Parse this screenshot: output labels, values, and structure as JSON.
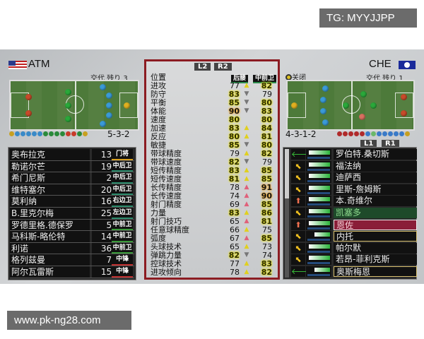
{
  "watermarks": {
    "top": "TG: MYYJJPP",
    "bottom": "www.pk-ng28.com"
  },
  "home": {
    "team": "ATM",
    "subs": "交代 残り 3",
    "formation": "5-3-2",
    "players": [
      {
        "name": "奥布拉克",
        "num": "13",
        "pos": "门将",
        "color": "#d9a020"
      },
      {
        "name": "勒诺尔芒",
        "num": "19",
        "pos": "中后卫",
        "color": "#2a8a6a"
      },
      {
        "name": "希门尼斯",
        "num": "2",
        "pos": "中后卫",
        "color": "#2a8a6a"
      },
      {
        "name": "维特塞尔",
        "num": "20",
        "pos": "中后卫",
        "color": "#2a8a6a"
      },
      {
        "name": "莫利纳",
        "num": "16",
        "pos": "右边卫",
        "color": "#2a8a6a"
      },
      {
        "name": "B.里克尔梅",
        "num": "25",
        "pos": "左边卫",
        "color": "#2a8a6a"
      },
      {
        "name": "罗德里格.德保罗",
        "num": "5",
        "pos": "中前卫",
        "color": "#3a9a3a"
      },
      {
        "name": "马科斯-略伦特",
        "num": "14",
        "pos": "中前卫",
        "color": "#3a9a3a"
      },
      {
        "name": "利诺",
        "num": "36",
        "pos": "中前卫",
        "color": "#3a9a3a"
      },
      {
        "name": "格列兹曼",
        "num": "7",
        "pos": "中锋",
        "color": "#c03030"
      },
      {
        "name": "阿尔瓦雷斯",
        "num": "15",
        "pos": "中锋",
        "color": "#c03030"
      }
    ]
  },
  "compare": {
    "l_button": "L2",
    "r_button": "R2",
    "position_label": "位置",
    "pos_left": "后腰",
    "pos_right": "中前卫",
    "stats": [
      [
        "进攻",
        77,
        "up",
        82
      ],
      [
        "防守",
        83,
        "down",
        79
      ],
      [
        "平衡",
        85,
        "down",
        80
      ],
      [
        "体能",
        90,
        "down",
        83
      ],
      [
        "速度",
        80,
        "none",
        80
      ],
      [
        "加速",
        83,
        "up",
        84
      ],
      [
        "反应",
        80,
        "up",
        81
      ],
      [
        "敏捷",
        85,
        "down",
        80
      ],
      [
        "带球精度",
        79,
        "up",
        82
      ],
      [
        "带球速度",
        82,
        "down",
        79
      ],
      [
        "短传精度",
        83,
        "up",
        85
      ],
      [
        "短传速度",
        81,
        "up",
        85
      ],
      [
        "长传精度",
        78,
        "up-big",
        91
      ],
      [
        "长传速度",
        74,
        "up-big",
        90
      ],
      [
        "射门精度",
        69,
        "up-big",
        85
      ],
      [
        "力量",
        83,
        "up",
        86
      ],
      [
        "射门技巧",
        65,
        "up-big",
        81
      ],
      [
        "任意球精度",
        66,
        "up",
        75
      ],
      [
        "弧度",
        67,
        "up-big",
        85
      ],
      [
        "头球技术",
        65,
        "up",
        73
      ],
      [
        "弹跳力量",
        82,
        "down",
        74
      ],
      [
        "控球技术",
        77,
        "up",
        83
      ],
      [
        "进攻倾向",
        78,
        "up",
        82
      ]
    ]
  },
  "away": {
    "team": "CHE",
    "close_label": "关闭",
    "subs": "交代 残り 1",
    "formation": "4-3-1-2",
    "l_button": "L1",
    "r_button": "R1",
    "players": [
      {
        "name": "罗伯特.桑切斯",
        "form": "left",
        "condition": 0.95
      },
      {
        "name": "福法纳",
        "form": "up-left",
        "condition": 0.95
      },
      {
        "name": "迪萨西",
        "form": "up-left",
        "condition": 0.95
      },
      {
        "name": "里斯-詹姆斯",
        "form": "up-left",
        "condition": 0.95
      },
      {
        "name": "本.奇维尔",
        "form": "up",
        "condition": 0.95
      },
      {
        "name": "凯塞多",
        "form": "up-left",
        "condition": 0.95,
        "state": "selected-green"
      },
      {
        "name": "恩佐",
        "form": "up",
        "condition": 0.95,
        "state": "selected-red"
      },
      {
        "name": "内托",
        "form": "up-left",
        "condition": 0.7,
        "state": "outlined"
      },
      {
        "name": "帕尔默",
        "form": "up-left",
        "condition": 0.95
      },
      {
        "name": "若昂-菲利克斯",
        "form": "up-left",
        "condition": 0.95
      },
      {
        "name": "奥斯梅恩",
        "form": "left",
        "condition": 0.7,
        "state": "outlined"
      }
    ]
  }
}
